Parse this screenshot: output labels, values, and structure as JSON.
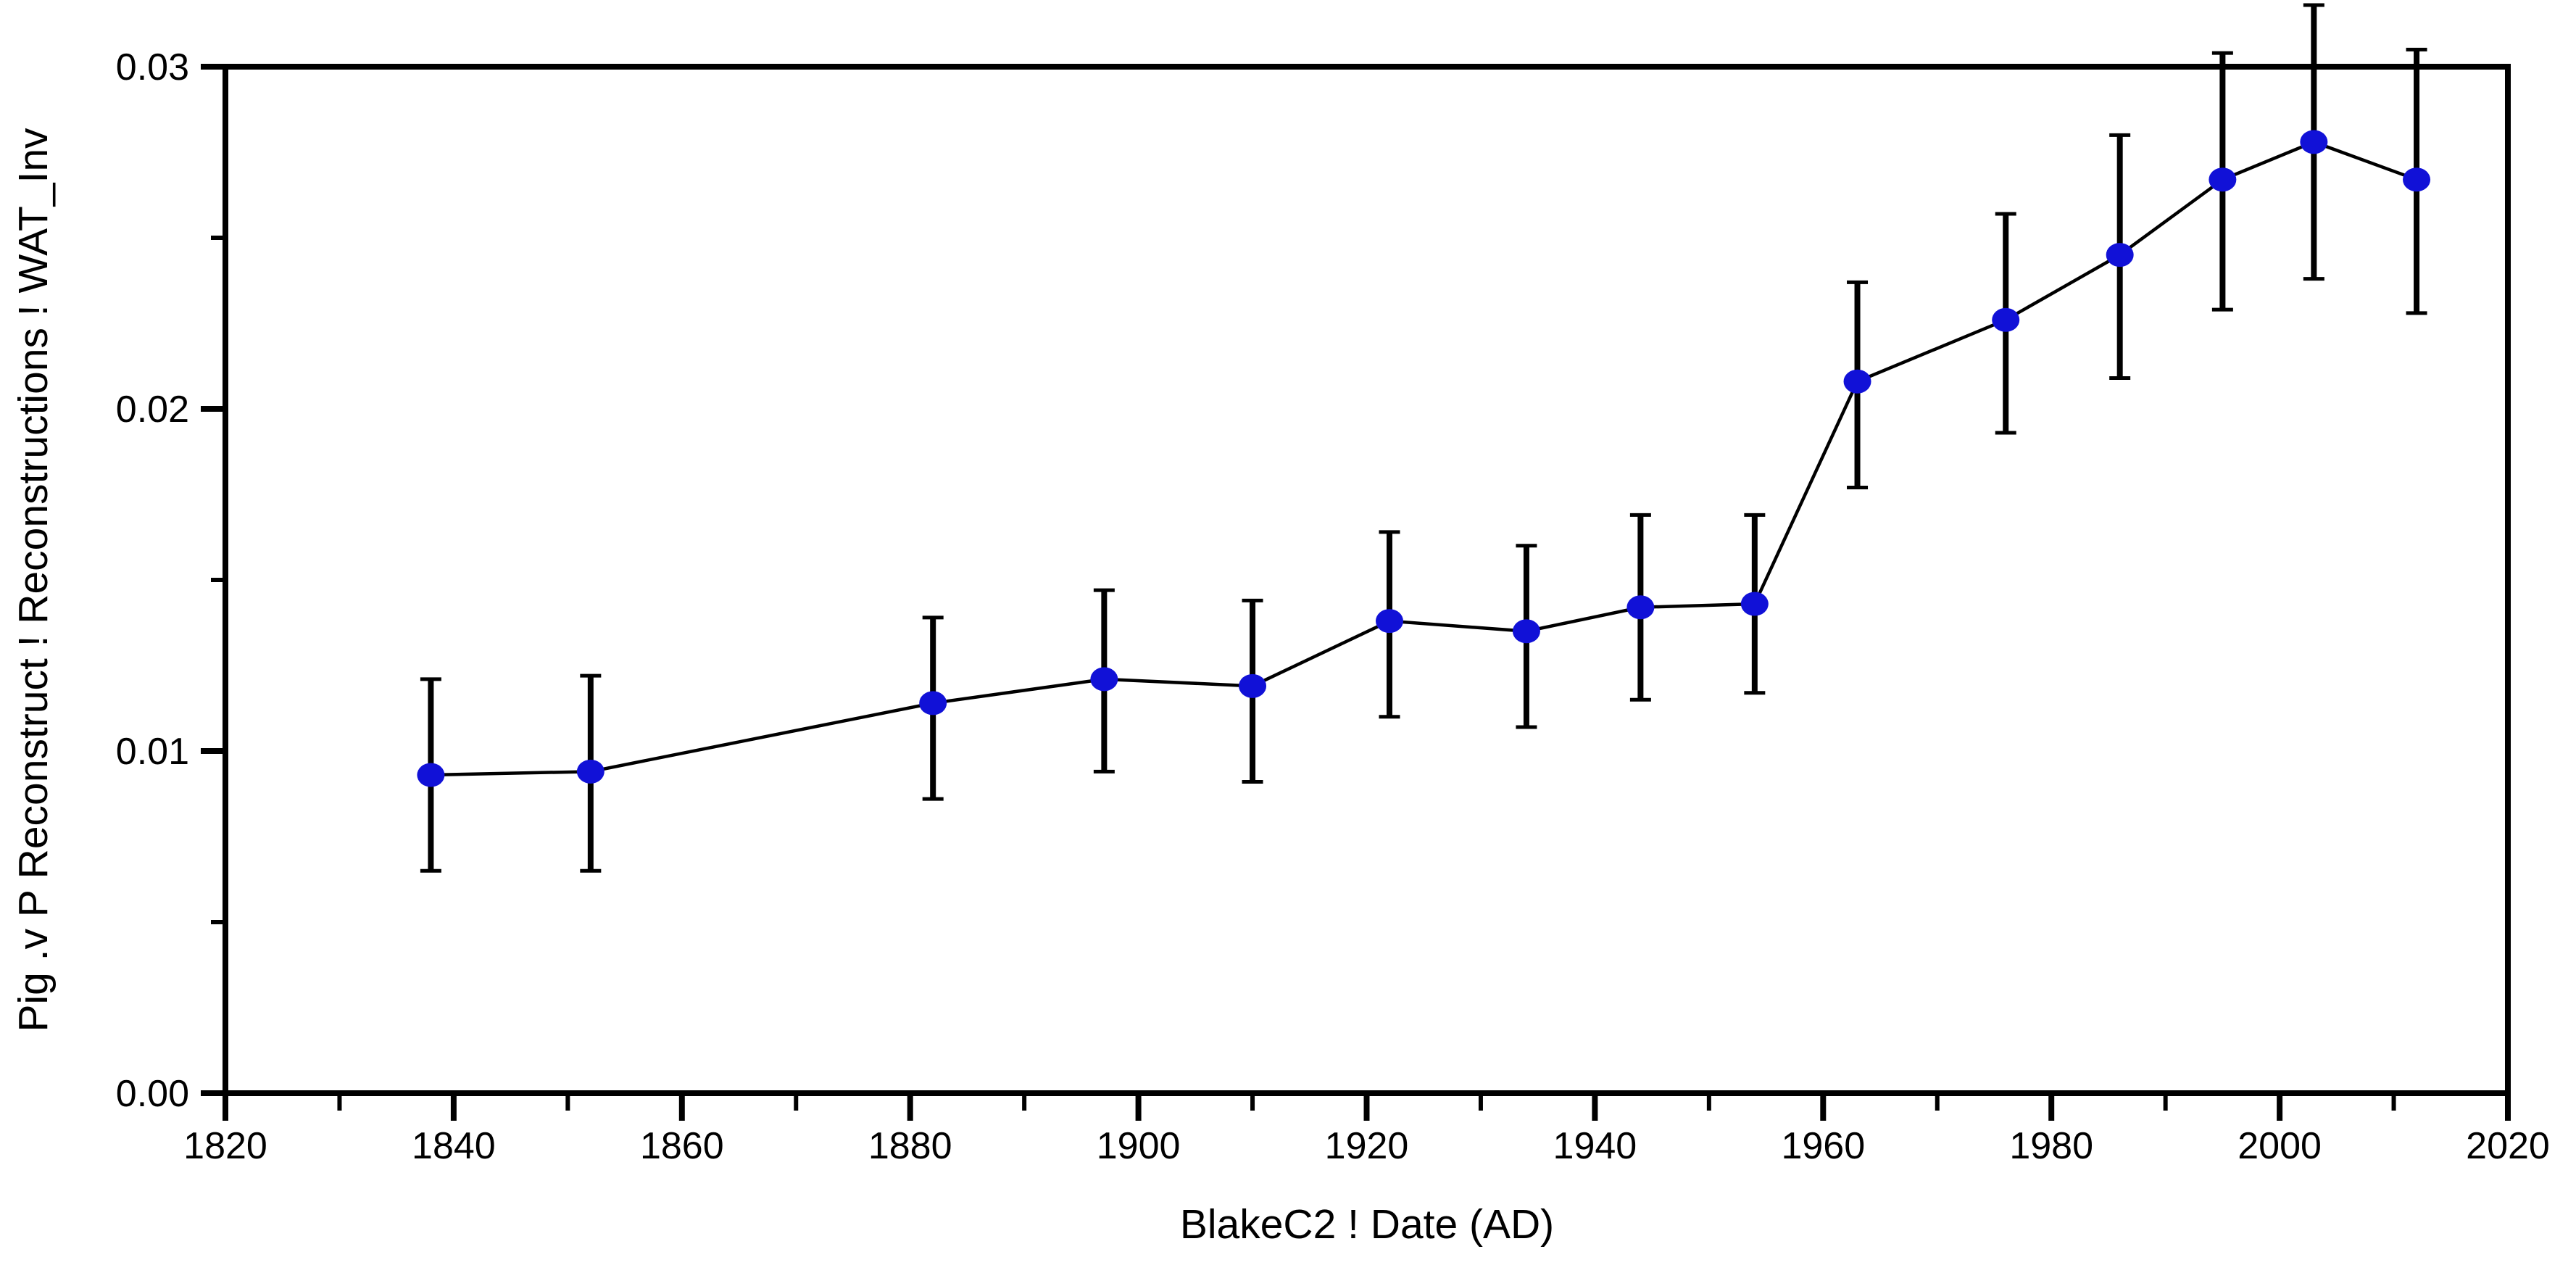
{
  "chart_data": {
    "type": "line",
    "title": "",
    "xlabel": "BlakeC2 ! Date (AD)",
    "ylabel": "Pig .v P Reconstruct ! Reconstructions ! WAT_Inv",
    "xlim": [
      1820,
      2020
    ],
    "ylim": [
      0.0,
      0.03
    ],
    "grid": false,
    "legend": null,
    "frame_color": "#000000",
    "background_color": "#ffffff",
    "x_major_ticks": [
      1820,
      1840,
      1860,
      1880,
      1900,
      1920,
      1940,
      1960,
      1980,
      2000,
      2020
    ],
    "x_tick_labels": [
      "1820",
      "1840",
      "1860",
      "1880",
      "1900",
      "1920",
      "1940",
      "1960",
      "1980",
      "2000",
      "2020"
    ],
    "x_minor_ticks": [
      1830,
      1850,
      1870,
      1890,
      1910,
      1930,
      1950,
      1970,
      1990,
      2010
    ],
    "y_major_ticks": [
      0.0,
      0.01,
      0.02,
      0.03
    ],
    "y_tick_labels": [
      "0.00",
      "0.01",
      "0.02",
      "0.03"
    ],
    "y_minor_ticks": [
      0.005,
      0.015,
      0.025
    ],
    "series": [
      {
        "marker": "filled-circle",
        "marker_color": "#1111d7",
        "line_color": "#000000",
        "error_bar_color": "#000000",
        "error_bars": true,
        "points": [
          {
            "x": 1838,
            "y": 0.0093,
            "y_low": 0.0065,
            "y_high": 0.0121
          },
          {
            "x": 1852,
            "y": 0.0094,
            "y_low": 0.0065,
            "y_high": 0.0122
          },
          {
            "x": 1882,
            "y": 0.0114,
            "y_low": 0.0086,
            "y_high": 0.0139
          },
          {
            "x": 1897,
            "y": 0.0121,
            "y_low": 0.0094,
            "y_high": 0.0147
          },
          {
            "x": 1910,
            "y": 0.0119,
            "y_low": 0.0091,
            "y_high": 0.0144
          },
          {
            "x": 1922,
            "y": 0.0138,
            "y_low": 0.011,
            "y_high": 0.0164
          },
          {
            "x": 1934,
            "y": 0.0135,
            "y_low": 0.0107,
            "y_high": 0.016
          },
          {
            "x": 1944,
            "y": 0.0142,
            "y_low": 0.0115,
            "y_high": 0.0169
          },
          {
            "x": 1954,
            "y": 0.0143,
            "y_low": 0.0117,
            "y_high": 0.0169
          },
          {
            "x": 1963,
            "y": 0.0208,
            "y_low": 0.0177,
            "y_high": 0.0237
          },
          {
            "x": 1976,
            "y": 0.0226,
            "y_low": 0.0193,
            "y_high": 0.0257
          },
          {
            "x": 1986,
            "y": 0.0245,
            "y_low": 0.0209,
            "y_high": 0.028
          },
          {
            "x": 1995,
            "y": 0.0267,
            "y_low": 0.0229,
            "y_high": 0.0304
          },
          {
            "x": 2003,
            "y": 0.0278,
            "y_low": 0.0238,
            "y_high": 0.0318
          },
          {
            "x": 2012,
            "y": 0.0267,
            "y_low": 0.0228,
            "y_high": 0.0305
          }
        ]
      }
    ]
  }
}
